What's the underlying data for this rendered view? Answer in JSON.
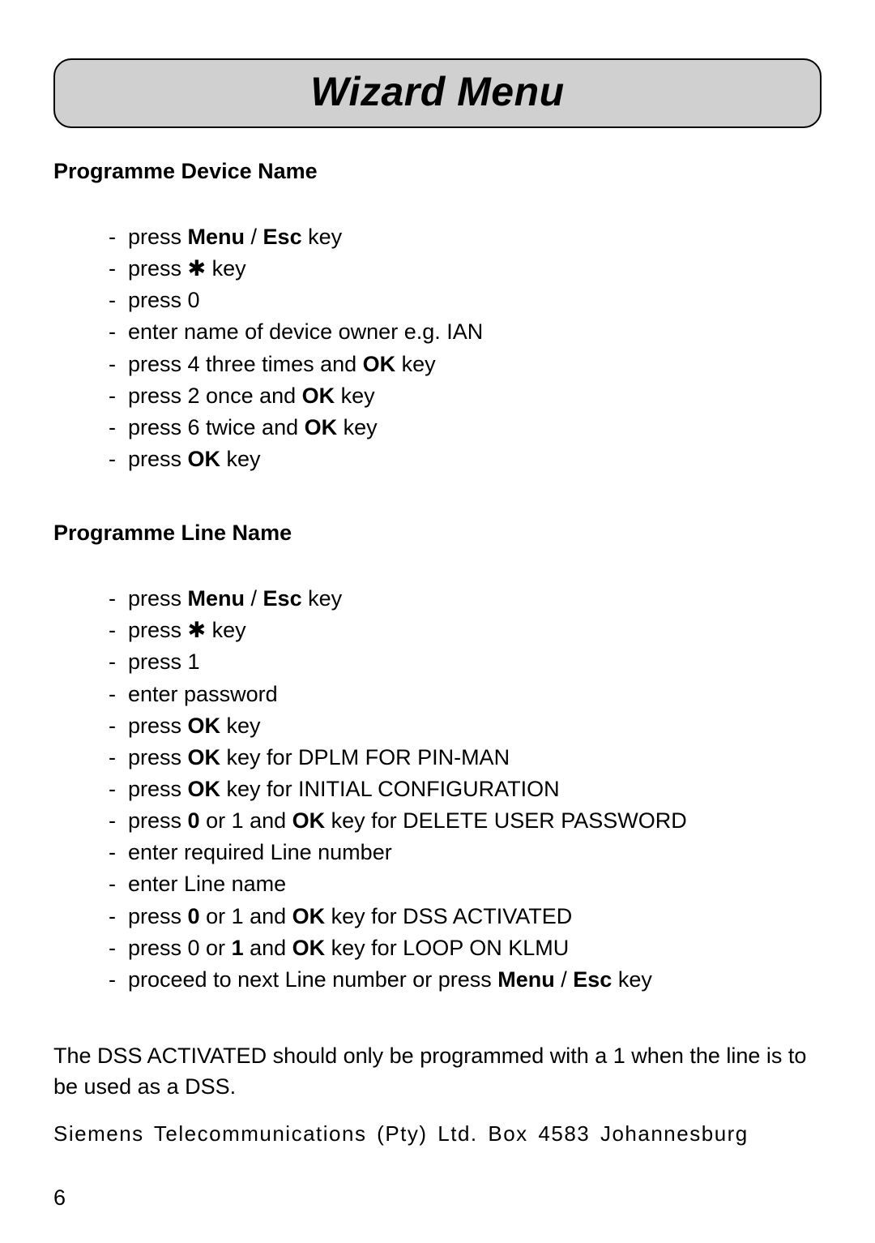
{
  "page": {
    "title": "Wizard Menu",
    "note": "The DSS ACTIVATED should only be programmed with a 1 when the line is to be used as a DSS.",
    "footer_company": "Siemens Telecommunications (Pty) Ltd. Box 4583 Johannesburg",
    "page_number": "6"
  },
  "sections": {
    "device": {
      "heading": "Programme Device Name",
      "steps": [
        "press <b>Menu</b> / <b>Esc</b> key",
        "press <span class='star'>✱</span> key",
        "press 0",
        "enter name of device owner e.g. IAN",
        "press 4 three times and <b>OK</b> key",
        "press 2 once and <b>OK</b> key",
        "press 6 twice and <b>OK</b> key",
        "press <b>OK</b> key"
      ]
    },
    "line": {
      "heading": "Programme Line Name",
      "steps": [
        "press <b>Menu</b> / <b>Esc</b> key",
        "press <span class='star'>✱</span> key",
        "press 1",
        "enter password",
        "press <b>OK</b> key",
        "press <b>OK</b> key for DPLM FOR PIN-MAN",
        "press <b>OK</b> key for INITIAL CONFIGURATION",
        "press <b>0</b> or 1 and <b>OK</b> key for DELETE USER PASSWORD",
        "enter required Line number",
        "enter Line name",
        "press <b>0</b> or 1 and <b>OK</b> key for DSS ACTIVATED",
        "press 0 or <b>1</b> and <b>OK</b> key for LOOP ON KLMU",
        "proceed to next Line number or press <b>Menu</b> / <b>Esc</b> key"
      ]
    }
  },
  "style": {
    "title_bg": "#d0d0d0",
    "title_border": "#000000",
    "title_fontsize": 50,
    "body_fontsize": 27,
    "heading_fontsize": 27,
    "footer_fontsize": 26,
    "text_color": "#000000",
    "page_bg": "#ffffff"
  }
}
